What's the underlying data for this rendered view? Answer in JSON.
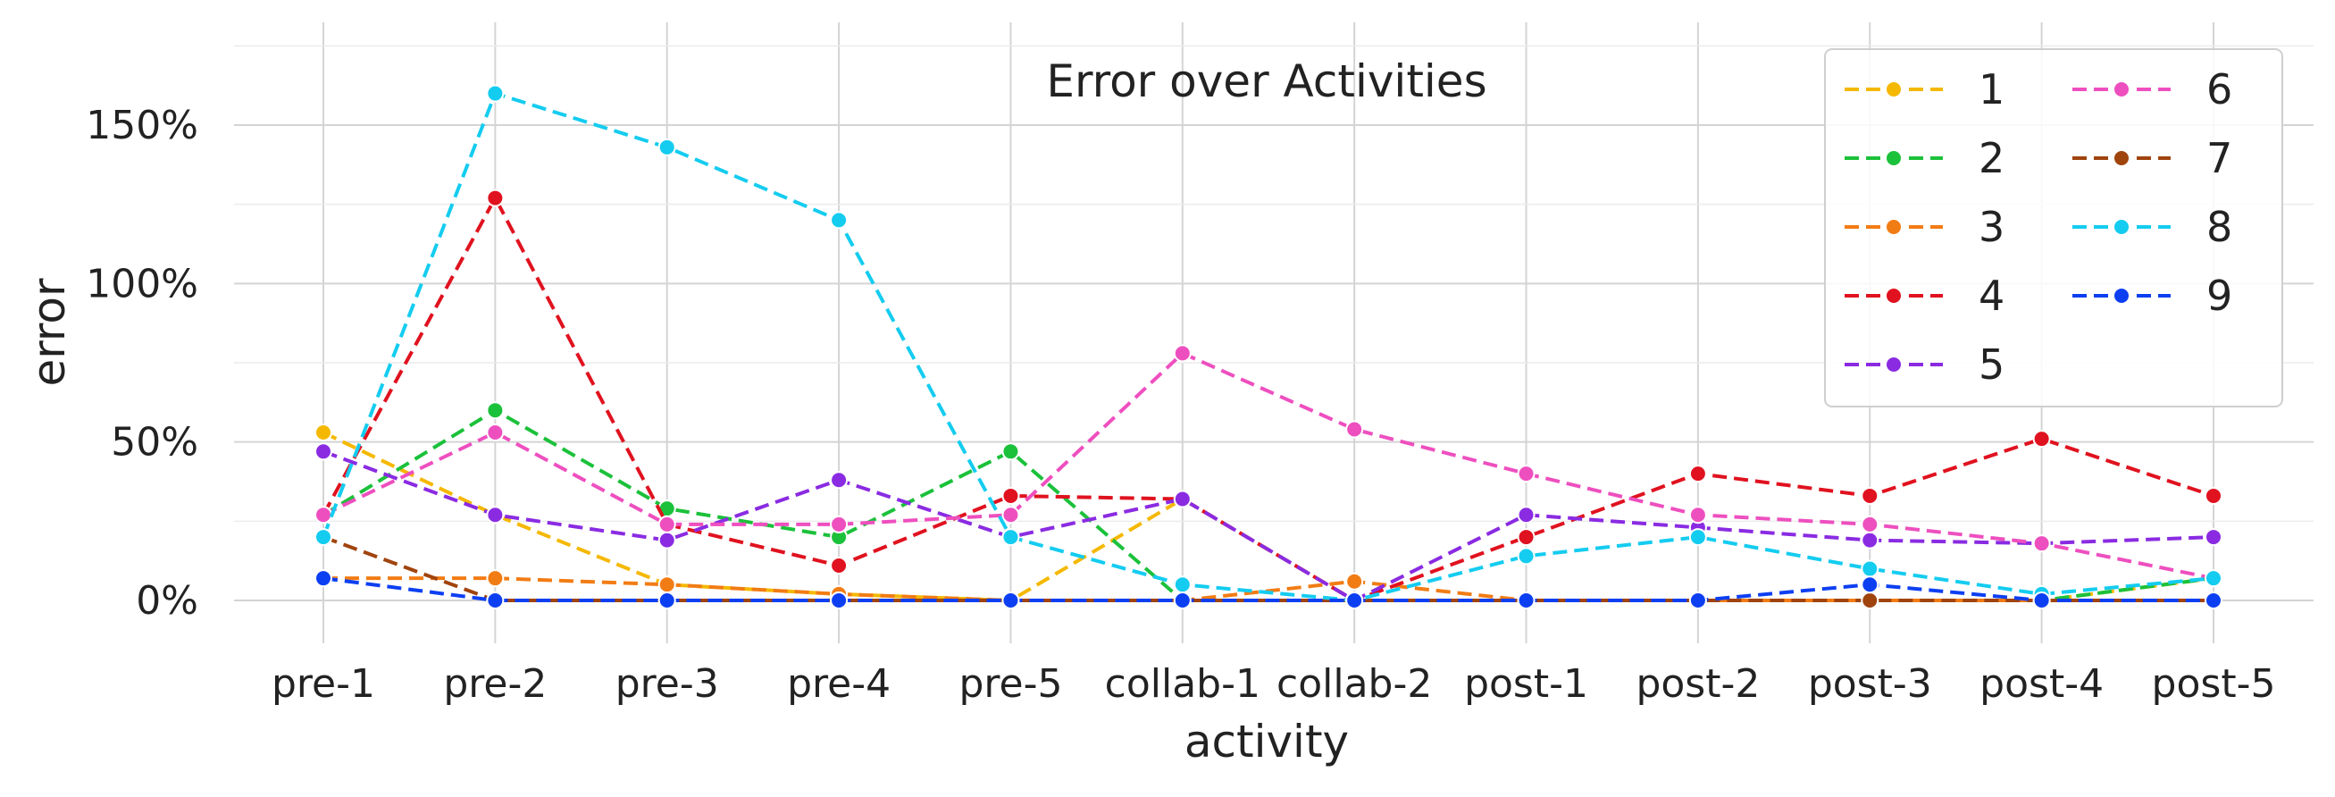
{
  "chart_data": {
    "type": "line",
    "title": "Error over Activities",
    "xlabel": "activity",
    "ylabel": "error",
    "categories": [
      "pre-1",
      "pre-2",
      "pre-3",
      "pre-4",
      "pre-5",
      "collab-1",
      "collab-2",
      "post-1",
      "post-2",
      "post-3",
      "post-4",
      "post-5"
    ],
    "y_unit": "%",
    "ylim": [
      -10,
      180
    ],
    "yticks": [
      0,
      50,
      100,
      150
    ],
    "grid": true,
    "legend_position": "top-right",
    "legend_columns": 2,
    "series": [
      {
        "name": "1",
        "color": "#f5b800",
        "values": [
          53,
          27,
          5,
          2,
          0,
          32,
          0,
          0,
          0,
          0,
          0,
          7
        ]
      },
      {
        "name": "2",
        "color": "#1bc13a",
        "values": [
          27,
          60,
          29,
          20,
          47,
          0,
          0,
          0,
          0,
          0,
          0,
          7
        ]
      },
      {
        "name": "3",
        "color": "#f27c14",
        "values": [
          7,
          7,
          5,
          2,
          0,
          0,
          6,
          0,
          0,
          0,
          0,
          0
        ]
      },
      {
        "name": "4",
        "color": "#e0121f",
        "values": [
          27,
          127,
          24,
          11,
          33,
          32,
          0,
          20,
          40,
          33,
          51,
          33
        ]
      },
      {
        "name": "5",
        "color": "#8a2be2",
        "values": [
          47,
          27,
          19,
          38,
          20,
          32,
          0,
          27,
          23,
          19,
          18,
          20
        ]
      },
      {
        "name": "6",
        "color": "#ee4fbf",
        "values": [
          27,
          53,
          24,
          24,
          27,
          78,
          54,
          40,
          27,
          24,
          18,
          7
        ]
      },
      {
        "name": "7",
        "color": "#a0440e",
        "values": [
          20,
          0,
          0,
          0,
          0,
          0,
          0,
          0,
          0,
          0,
          0,
          0
        ]
      },
      {
        "name": "8",
        "color": "#14ccf0",
        "values": [
          20,
          160,
          143,
          120,
          20,
          5,
          0,
          14,
          20,
          10,
          2,
          7
        ]
      },
      {
        "name": "9",
        "color": "#0d3ff2",
        "values": [
          7,
          0,
          0,
          0,
          0,
          0,
          0,
          0,
          0,
          5,
          0,
          0
        ]
      }
    ]
  }
}
